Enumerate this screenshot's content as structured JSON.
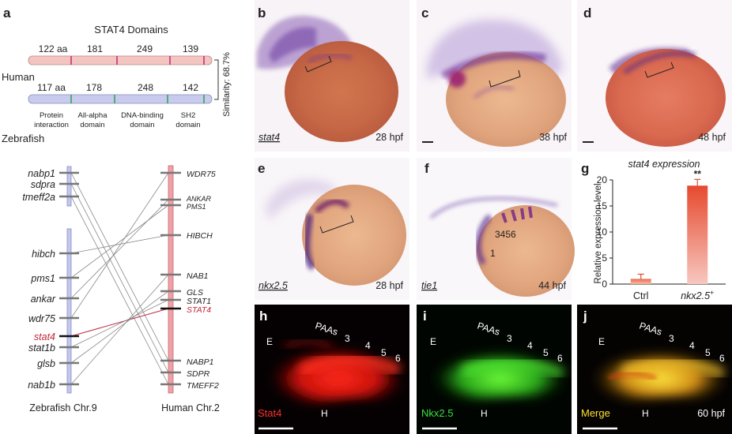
{
  "panel_letters": [
    "a",
    "b",
    "c",
    "d",
    "e",
    "f",
    "g",
    "h",
    "i",
    "j"
  ],
  "domains": {
    "title": "STAT4 Domains",
    "human_label": "Human",
    "zebrafish_label": "Zebrafish",
    "human_aa": [
      "122 aa",
      "181",
      "249",
      "139"
    ],
    "zebrafish_aa": [
      "117 aa",
      "178",
      "248",
      "142"
    ],
    "similarity": "Similarity: 68.7%",
    "domain_names": [
      [
        "Protein",
        "interaction"
      ],
      [
        "All-alpha",
        "domain"
      ],
      [
        "DNA-binding",
        "domain"
      ],
      [
        "SH2",
        "domain"
      ]
    ],
    "colors": {
      "human_bar": "#f4c4c0",
      "zebrafish_bar": "#c8cbee",
      "human_div": "#c0287a",
      "zebrafish_div": "#2aa050"
    }
  },
  "synteny": {
    "zebrafish_genes": [
      "nabp1",
      "sdpra",
      "tmeff2a",
      "hibch",
      "pms1",
      "ankar",
      "wdr75",
      "stat4",
      "stat1b",
      "glsb",
      "nab1b"
    ],
    "human_genes": [
      "WDR75",
      "ANKAR",
      "PMS1",
      "HIBCH",
      "NAB1",
      "GLS",
      "STAT1",
      "STAT4",
      "NABP1",
      "SDPR",
      "TMEFF2"
    ],
    "zebrafish_chr": "Zebrafish Chr.9",
    "human_chr": "Human Chr.2",
    "highlight_color": "#c0283a"
  },
  "images": {
    "b": {
      "gene": "stat4",
      "stage": "28 hpf"
    },
    "c": {
      "stage": "38 hpf"
    },
    "d": {
      "stage": "48 hpf"
    },
    "e": {
      "gene": "nkx2.5",
      "stage": "28 hpf"
    },
    "f": {
      "gene": "tie1",
      "stage": "44 hpf",
      "marks": [
        "3456",
        "1"
      ]
    },
    "h": {
      "label": "Stat4",
      "marks": [
        "E",
        "H",
        "PAAs",
        "3",
        "4",
        "5",
        "6"
      ]
    },
    "i": {
      "label": "Nkx2.5",
      "marks": [
        "E",
        "H",
        "PAAs",
        "3",
        "4",
        "5",
        "6"
      ]
    },
    "j": {
      "label": "Merge",
      "stage": "60 hpf",
      "marks": [
        "E",
        "H",
        "PAAs",
        "3",
        "4",
        "5",
        "6"
      ]
    }
  },
  "chart_data": {
    "type": "bar",
    "title": "stat4 expression",
    "ylabel": "Relative expression level",
    "categories": [
      "Ctrl",
      "nkx2.5+"
    ],
    "category_labels": [
      {
        "main": "Ctrl",
        "sup": ""
      },
      {
        "main": "nkx2.5",
        "sup": "+"
      }
    ],
    "values": [
      1.0,
      18.9
    ],
    "errors": [
      0.9,
      1.2
    ],
    "ylim": [
      0,
      20
    ],
    "yticks": [
      0,
      5,
      10,
      15,
      20
    ],
    "significance": "**"
  }
}
